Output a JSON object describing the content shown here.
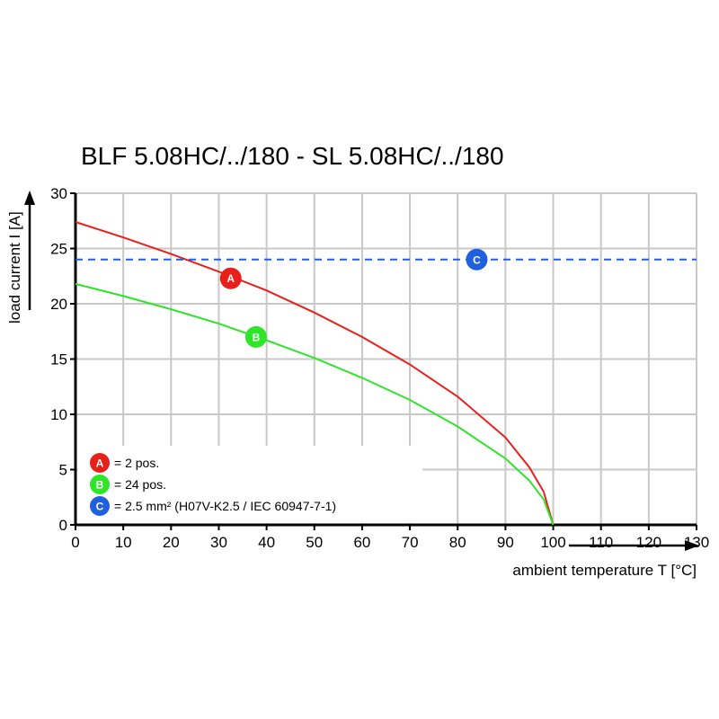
{
  "chart_data": {
    "type": "line",
    "title": "BLF 5.08HC/../180 - SL 5.08HC/../180",
    "xlabel": "ambient temperature T [°C]",
    "ylabel": "load current I [A]",
    "xlim": [
      0,
      130
    ],
    "ylim": [
      0,
      30
    ],
    "xticks": [
      0,
      10,
      20,
      30,
      40,
      50,
      60,
      70,
      80,
      90,
      100,
      110,
      120,
      130
    ],
    "yticks": [
      0,
      5,
      10,
      15,
      20,
      25,
      30
    ],
    "grid": true,
    "legend_position": "bottom-left",
    "series": [
      {
        "marker": "A",
        "color": "#e8201c",
        "x": [
          0,
          10,
          20,
          30,
          40,
          50,
          60,
          70,
          80,
          90,
          95,
          98,
          100
        ],
        "y": [
          27.4,
          26.0,
          24.5,
          22.9,
          21.2,
          19.2,
          17.0,
          14.5,
          11.6,
          7.9,
          5.2,
          3.0,
          0
        ],
        "marker_at": [
          32.5,
          22.3
        ]
      },
      {
        "marker": "B",
        "color": "#2ee52a",
        "x": [
          0,
          10,
          20,
          30,
          40,
          50,
          60,
          70,
          80,
          90,
          95,
          98,
          100
        ],
        "y": [
          21.8,
          20.7,
          19.5,
          18.2,
          16.7,
          15.1,
          13.3,
          11.3,
          8.9,
          6.0,
          4.0,
          2.3,
          0
        ],
        "marker_at": [
          37.8,
          17.0
        ]
      },
      {
        "marker": "C",
        "color": "#1f5fe0",
        "style": "dashed",
        "x": [
          0,
          130
        ],
        "y": [
          24,
          24
        ],
        "marker_at": [
          84,
          24
        ]
      }
    ],
    "legend": [
      {
        "marker": "A",
        "color": "#e8201c",
        "text": "= 2 pos."
      },
      {
        "marker": "B",
        "color": "#2ee52a",
        "text": "= 24 pos."
      },
      {
        "marker": "C",
        "color": "#1f5fe0",
        "text": "= 2.5 mm² (H07V-K2.5 / IEC 60947-7-1)"
      }
    ]
  }
}
